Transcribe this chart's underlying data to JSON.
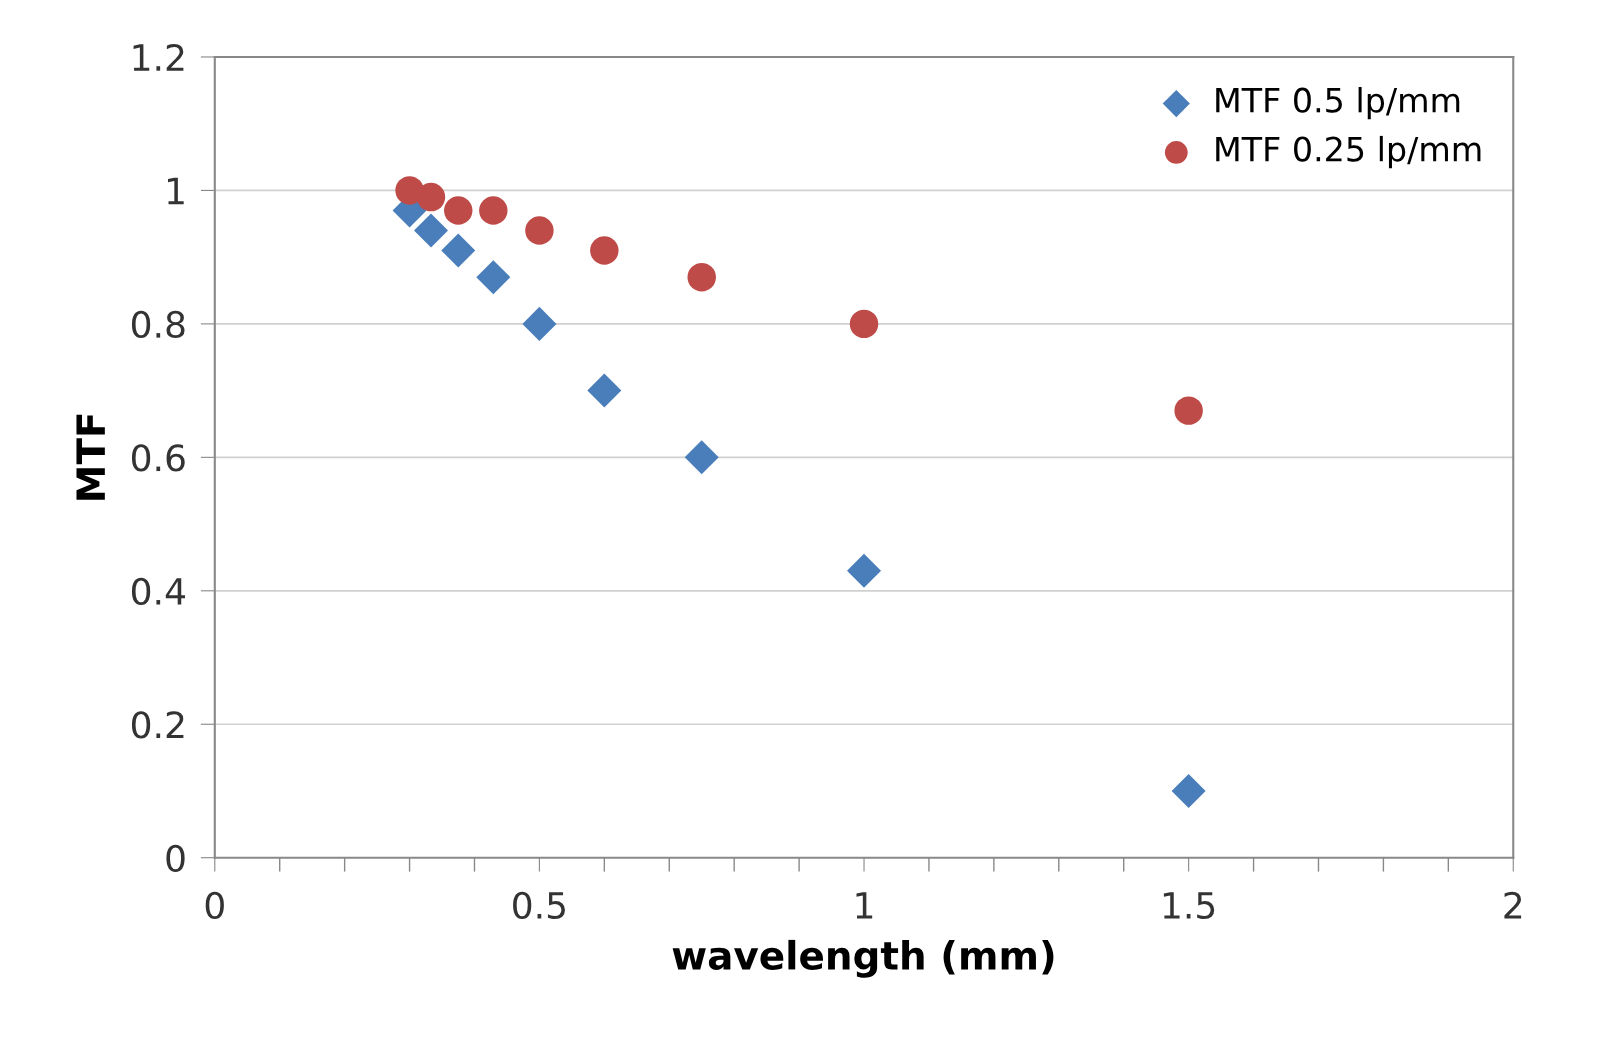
{
  "chart_data": {
    "type": "scatter",
    "xlabel": "wavelength (mm)",
    "ylabel": "MTF",
    "xlim": [
      0,
      2
    ],
    "ylim": [
      0,
      1.2
    ],
    "xticks": [
      0,
      {
        "value": 0.1,
        "label": null
      },
      {
        "value": 0.2,
        "label": null
      },
      {
        "value": 0.3,
        "label": null
      },
      {
        "value": 0.4,
        "label": null
      },
      0.5,
      {
        "value": 0.6,
        "label": null
      },
      {
        "value": 0.7,
        "label": null
      },
      {
        "value": 0.8,
        "label": null
      },
      {
        "value": 0.9,
        "label": null
      },
      1,
      {
        "value": 1.1,
        "label": null
      },
      {
        "value": 1.2,
        "label": null
      },
      {
        "value": 1.3,
        "label": null
      },
      {
        "value": 1.4,
        "label": null
      },
      1.5,
      {
        "value": 1.6,
        "label": null
      },
      {
        "value": 1.7,
        "label": null
      },
      {
        "value": 1.8,
        "label": null
      },
      {
        "value": 1.9,
        "label": null
      },
      2
    ],
    "yticks": [
      0,
      0.2,
      0.4,
      0.6,
      0.8,
      1,
      1.2
    ],
    "grid": "y",
    "legend": "top right",
    "series": [
      {
        "name": "MTF 0.5 lp/mm",
        "color": "#4a7ebb",
        "marker": "diamond",
        "x": [
          0.3,
          0.333,
          0.375,
          0.429,
          0.5,
          0.6,
          0.75,
          1,
          1.5
        ],
        "values": [
          0.97,
          0.94,
          0.91,
          0.87,
          0.8,
          0.7,
          0.6,
          0.43,
          0.1
        ]
      },
      {
        "name": "MTF 0.25 lp/mm",
        "color": "#be4b48",
        "marker": "circle",
        "x": [
          0.3,
          0.333,
          0.375,
          0.429,
          0.5,
          0.6,
          0.75,
          1,
          1.5
        ],
        "values": [
          1.0,
          0.99,
          0.97,
          0.97,
          0.94,
          0.91,
          0.87,
          0.8,
          0.67
        ]
      }
    ]
  }
}
